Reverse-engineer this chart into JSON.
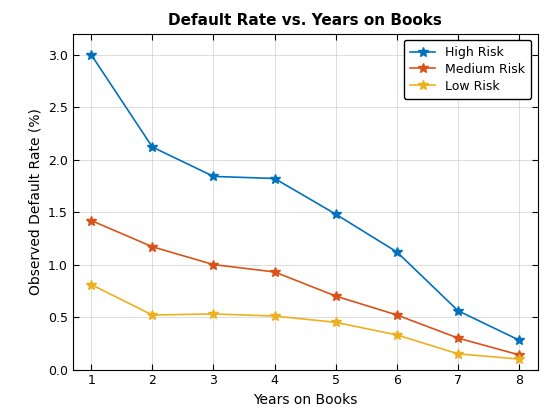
{
  "title": "Default Rate vs. Years on Books",
  "xlabel": "Years on Books",
  "ylabel": "Observed Default Rate (%)",
  "x": [
    1,
    2,
    3,
    4,
    5,
    6,
    7,
    8
  ],
  "high_risk": [
    3.0,
    2.12,
    1.84,
    1.82,
    1.48,
    1.12,
    0.56,
    0.28
  ],
  "medium_risk": [
    1.42,
    1.17,
    1.0,
    0.93,
    0.7,
    0.52,
    0.3,
    0.14
  ],
  "low_risk": [
    0.81,
    0.52,
    0.53,
    0.51,
    0.45,
    0.33,
    0.15,
    0.1
  ],
  "high_color": "#0072BD",
  "medium_color": "#D95319",
  "low_color": "#EDB120",
  "legend_labels": [
    "High Risk",
    "Medium Risk",
    "Low Risk"
  ],
  "xlim": [
    0.7,
    8.3
  ],
  "ylim": [
    0,
    3.2
  ],
  "yticks": [
    0,
    0.5,
    1.0,
    1.5,
    2.0,
    2.5,
    3.0
  ],
  "xticks": [
    1,
    2,
    3,
    4,
    5,
    6,
    7,
    8
  ],
  "title_fontsize": 11,
  "label_fontsize": 10,
  "tick_fontsize": 9,
  "legend_fontsize": 9,
  "linewidth": 1.2,
  "marker": "*",
  "markersize": 7
}
